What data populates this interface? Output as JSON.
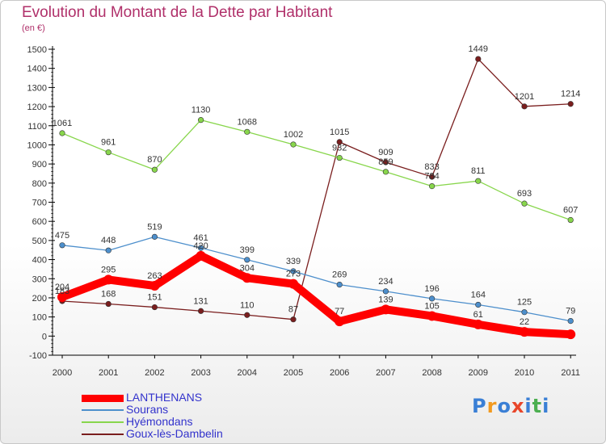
{
  "chart_data": {
    "type": "line",
    "title": "Evolution du Montant de la Dette par Habitant",
    "subtitle": "(en €)",
    "categories": [
      "2000",
      "2001",
      "2002",
      "2003",
      "2004",
      "2005",
      "2006",
      "2007",
      "2008",
      "2009",
      "2010",
      "2011"
    ],
    "ylim": [
      -100,
      1500
    ],
    "yticks": [
      -100,
      0,
      100,
      200,
      300,
      400,
      500,
      600,
      700,
      800,
      900,
      1000,
      1100,
      1200,
      1300,
      1400,
      1500
    ],
    "grid": false,
    "legend": "bottom-left",
    "series": [
      {
        "name": "LANTHENANS",
        "color": "#ff0000",
        "values": [
          204,
          295,
          263,
          420,
          304,
          273,
          77,
          139,
          105,
          61,
          22,
          9
        ],
        "labels": [
          "204",
          "295",
          "263",
          "420",
          "304",
          "273",
          "77",
          "139",
          "105",
          "61",
          "22",
          ""
        ]
      },
      {
        "name": "Sourans",
        "color": "#4d8fcc",
        "values": [
          475,
          448,
          519,
          461,
          399,
          339,
          269,
          234,
          196,
          164,
          125,
          79
        ],
        "labels": [
          "475",
          "448",
          "519",
          "461",
          "399",
          "339",
          "269",
          "234",
          "196",
          "164",
          "125",
          "79"
        ]
      },
      {
        "name": "Hyémondans",
        "color": "#88d64c",
        "values": [
          1061,
          961,
          870,
          1130,
          1068,
          1002,
          932,
          859,
          784,
          811,
          693,
          607
        ],
        "labels": [
          "1061",
          "961",
          "870",
          "1130",
          "1068",
          "1002",
          "932",
          "859",
          "784",
          "811",
          "693",
          "607"
        ]
      },
      {
        "name": "Goux-lès-Dambelin",
        "color": "#7a1e1e",
        "values": [
          183,
          168,
          151,
          131,
          110,
          87,
          1015,
          909,
          833,
          1449,
          1201,
          1214
        ],
        "labels": [
          "183",
          "168",
          "151",
          "131",
          "110",
          "87",
          "1015",
          "909",
          "833",
          "1449",
          "1201",
          "1214"
        ]
      }
    ]
  },
  "brand": {
    "text": "Proxiti",
    "colors": [
      "#3a7fd5",
      "#f29a1f",
      "#3a7fd5",
      "#e8462a",
      "#3a7fd5",
      "#4caf50",
      "#3a7fd5"
    ]
  }
}
